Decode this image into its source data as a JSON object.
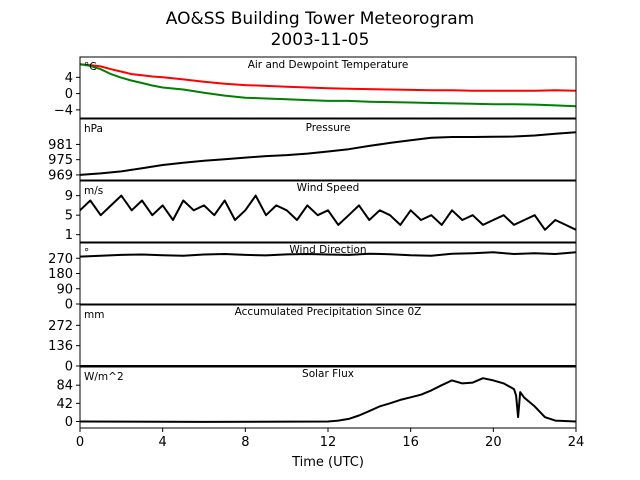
{
  "figure": {
    "title": "AO&SS Building Tower Meteorogram",
    "subtitle": "2003-11-05",
    "xlabel": "Time (UTC)"
  },
  "chart_data": [
    {
      "type": "line",
      "title": "Air and Dewpoint Temperature",
      "unit": "°C",
      "xlim": [
        0,
        24
      ],
      "ylim": [
        -6,
        9
      ],
      "yticks": [
        -4,
        0,
        4
      ],
      "color_hint": [
        "#ff0000",
        "#008000"
      ],
      "series": [
        {
          "color": "#ff0000",
          "x": [
            0,
            0.5,
            1,
            1.5,
            2,
            2.5,
            3,
            3.5,
            4,
            5,
            6,
            7,
            8,
            9,
            10,
            11,
            12,
            13,
            14,
            15,
            16,
            17,
            18,
            19,
            20,
            21,
            22,
            23,
            24
          ],
          "values": [
            7.2,
            7.0,
            6.7,
            6.0,
            5.4,
            4.8,
            4.5,
            4.2,
            4.0,
            3.5,
            2.9,
            2.4,
            2.1,
            1.9,
            1.7,
            1.5,
            1.3,
            1.2,
            1.1,
            1.0,
            0.9,
            0.8,
            0.8,
            0.7,
            0.7,
            0.7,
            0.7,
            0.8,
            0.7
          ]
        },
        {
          "color": "#008000",
          "x": [
            0,
            0.5,
            1,
            1.5,
            2,
            2.5,
            3,
            3.5,
            4,
            5,
            6,
            7,
            8,
            9,
            10,
            11,
            12,
            13,
            14,
            15,
            16,
            17,
            18,
            19,
            20,
            21,
            22,
            23,
            24
          ],
          "values": [
            7.2,
            6.8,
            6.0,
            4.8,
            3.9,
            3.2,
            2.6,
            2.0,
            1.5,
            1.0,
            0.2,
            -0.5,
            -1.0,
            -1.2,
            -1.4,
            -1.6,
            -1.8,
            -1.8,
            -2.0,
            -2.1,
            -2.2,
            -2.3,
            -2.4,
            -2.5,
            -2.6,
            -2.6,
            -2.7,
            -2.9,
            -3.1
          ]
        }
      ]
    },
    {
      "type": "line",
      "title": "Pressure",
      "unit": "hPa",
      "xlim": [
        0,
        24
      ],
      "ylim": [
        967,
        991
      ],
      "yticks": [
        969,
        975,
        981
      ],
      "series": [
        {
          "color": "#000000",
          "x": [
            0,
            1,
            2,
            3,
            4,
            5,
            6,
            7,
            8,
            9,
            10,
            11,
            12,
            13,
            14,
            15,
            16,
            17,
            18,
            19,
            20,
            21,
            22,
            23,
            24
          ],
          "values": [
            969.0,
            969.6,
            970.4,
            971.6,
            972.9,
            973.8,
            974.6,
            975.2,
            975.8,
            976.4,
            976.8,
            977.4,
            978.2,
            979.1,
            980.4,
            981.6,
            982.6,
            983.6,
            983.9,
            983.9,
            984.0,
            984.1,
            984.5,
            985.2,
            985.8
          ]
        }
      ]
    },
    {
      "type": "line",
      "title": "Wind Speed",
      "unit": "m/s",
      "xlim": [
        0,
        24
      ],
      "ylim": [
        -0.5,
        12
      ],
      "yticks": [
        1,
        5,
        9
      ],
      "series": [
        {
          "color": "#000000",
          "x": [
            0,
            0.5,
            1,
            1.5,
            2,
            2.5,
            3,
            3.5,
            4,
            4.5,
            5,
            5.5,
            6,
            6.5,
            7,
            7.5,
            8,
            8.5,
            9,
            9.5,
            10,
            10.5,
            11,
            11.5,
            12,
            12.5,
            13,
            13.5,
            14,
            14.5,
            15,
            15.5,
            16,
            16.5,
            17,
            17.5,
            18,
            18.5,
            19,
            19.5,
            20,
            20.5,
            21,
            21.5,
            22,
            22.5,
            23,
            23.5,
            24
          ],
          "values": [
            6,
            8,
            5,
            7,
            9,
            6,
            8,
            5,
            7,
            4,
            8,
            6,
            7,
            5,
            8,
            4,
            6,
            9,
            5,
            7,
            6,
            4,
            7,
            5,
            6,
            3,
            5,
            7,
            4,
            6,
            5,
            3,
            6,
            4,
            5,
            3,
            6,
            4,
            5,
            3,
            4,
            5,
            3,
            4,
            5,
            2,
            4,
            3,
            2
          ]
        }
      ]
    },
    {
      "type": "line",
      "title": "Wind Direction",
      "unit": "°",
      "xlim": [
        0,
        24
      ],
      "ylim": [
        0,
        360
      ],
      "yticks": [
        0,
        90,
        180,
        270
      ],
      "series": [
        {
          "color": "#000000",
          "x": [
            0,
            1,
            2,
            3,
            4,
            5,
            6,
            7,
            8,
            9,
            10,
            11,
            12,
            13,
            14,
            15,
            16,
            17,
            18,
            19,
            20,
            21,
            22,
            23,
            24
          ],
          "values": [
            280,
            285,
            290,
            292,
            288,
            285,
            292,
            295,
            290,
            287,
            293,
            295,
            292,
            290,
            296,
            294,
            288,
            285,
            296,
            300,
            305,
            295,
            300,
            295,
            305
          ]
        }
      ]
    },
    {
      "type": "line",
      "title": "Accumulated Precipitation Since 0Z",
      "unit": "mm",
      "xlim": [
        0,
        24
      ],
      "ylim": [
        0,
        408
      ],
      "yticks": [
        0,
        136,
        272
      ],
      "series": [
        {
          "color": "#000000",
          "x": [
            0,
            24
          ],
          "values": [
            0,
            0
          ]
        }
      ]
    },
    {
      "type": "line",
      "title": "Solar Flux",
      "unit": "W/m^2",
      "xlim": [
        0,
        24
      ],
      "ylim": [
        -15,
        126
      ],
      "yticks": [
        0,
        42,
        84
      ],
      "series": [
        {
          "color": "#000000",
          "x": [
            0,
            6,
            12,
            12.5,
            13,
            13.5,
            14,
            14.5,
            15,
            15.5,
            16,
            16.5,
            17,
            17.5,
            18,
            18.5,
            19,
            19.5,
            20,
            20.5,
            21,
            21.1,
            21.2,
            21.3,
            21.5,
            22,
            22.5,
            23,
            24
          ],
          "values": [
            0,
            -1,
            0,
            2,
            6,
            14,
            24,
            35,
            42,
            50,
            56,
            62,
            72,
            84,
            95,
            88,
            90,
            100,
            95,
            88,
            75,
            60,
            10,
            68,
            55,
            35,
            10,
            2,
            0
          ]
        }
      ]
    }
  ],
  "xaxis": {
    "ticks": [
      0,
      4,
      8,
      12,
      16,
      20,
      24
    ]
  }
}
